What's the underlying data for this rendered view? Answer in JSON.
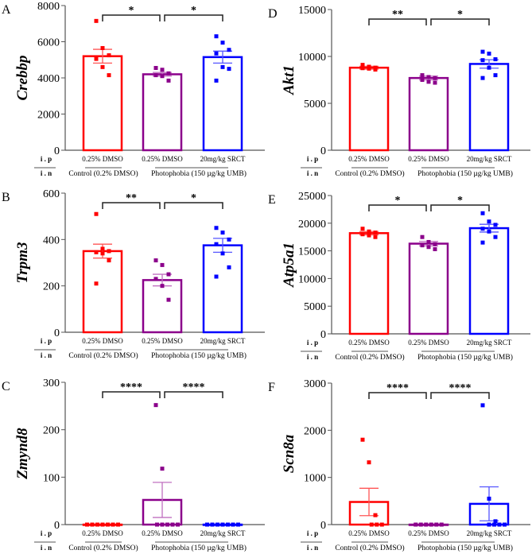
{
  "chart_data": [
    {
      "panel": "A",
      "type": "bar",
      "ylabel": "Crebbp",
      "ylim": [
        0,
        8000
      ],
      "yticks": [
        0,
        2000,
        4000,
        6000,
        8000
      ],
      "groups": [
        {
          "ip": "0.25% DMSO",
          "mean": 5200,
          "sem": 380,
          "points": [
            7150,
            5650,
            5250,
            5050,
            4600,
            4150
          ]
        },
        {
          "ip": "0.25% DMSO",
          "mean": 4200,
          "sem": 100,
          "points": [
            4550,
            4450,
            4250,
            4150,
            4100,
            3850
          ]
        },
        {
          "ip": "20mg/kg SRCT",
          "mean": 5150,
          "sem": 330,
          "points": [
            6300,
            5950,
            5550,
            5350,
            4600,
            4500,
            3850
          ]
        }
      ],
      "sig": [
        "*",
        "*"
      ]
    },
    {
      "panel": "B",
      "type": "bar",
      "ylabel": "Trpm3",
      "ylim": [
        0,
        600
      ],
      "yticks": [
        0,
        200,
        400,
        600
      ],
      "groups": [
        {
          "ip": "0.25% DMSO",
          "mean": 350,
          "sem": 30,
          "points": [
            510,
            360,
            350,
            345,
            340,
            310,
            210
          ]
        },
        {
          "ip": "0.25% DMSO",
          "mean": 225,
          "sem": 25,
          "points": [
            310,
            290,
            250,
            230,
            200,
            140
          ]
        },
        {
          "ip": "20mg/kg SRCT",
          "mean": 375,
          "sem": 30,
          "points": [
            450,
            430,
            400,
            380,
            340,
            280,
            240
          ]
        }
      ],
      "sig": [
        "**",
        "*"
      ]
    },
    {
      "panel": "C",
      "type": "bar",
      "ylabel": "Zmynd8",
      "ylim": [
        0,
        300
      ],
      "yticks": [
        0,
        100,
        200,
        300
      ],
      "groups": [
        {
          "ip": "0.25% DMSO",
          "mean": 0,
          "sem": 0,
          "points": [
            0,
            0,
            0,
            0,
            0,
            0,
            0
          ]
        },
        {
          "ip": "0.25% DMSO",
          "mean": 52,
          "sem": 37,
          "points": [
            252,
            118,
            0,
            0,
            0,
            0,
            0
          ]
        },
        {
          "ip": "20mg/kg SRCT",
          "mean": 0,
          "sem": 0,
          "points": [
            0,
            0,
            0,
            0,
            0,
            0,
            0
          ]
        }
      ],
      "sig": [
        "****",
        "****"
      ]
    },
    {
      "panel": "D",
      "type": "bar",
      "ylabel": "Akt1",
      "ylim": [
        0,
        15000
      ],
      "yticks": [
        0,
        5000,
        10000,
        15000
      ],
      "groups": [
        {
          "ip": "0.25% DMSO",
          "mean": 8800,
          "sem": 150,
          "points": [
            9100,
            8900,
            8800,
            8750,
            8700,
            8600
          ]
        },
        {
          "ip": "0.25% DMSO",
          "mean": 7700,
          "sem": 200,
          "points": [
            8000,
            7800,
            7700,
            7500,
            7300,
            7200
          ]
        },
        {
          "ip": "20mg/kg SRCT",
          "mean": 9200,
          "sem": 450,
          "points": [
            10500,
            10300,
            9700,
            9600,
            8800,
            8000,
            7700
          ]
        }
      ],
      "sig": [
        "**",
        "*"
      ]
    },
    {
      "panel": "E",
      "type": "bar",
      "ylabel": "Atp5a1",
      "ylim": [
        0,
        25000
      ],
      "yticks": [
        0,
        5000,
        10000,
        15000,
        20000,
        25000
      ],
      "groups": [
        {
          "ip": "0.25% DMSO",
          "mean": 18200,
          "sem": 300,
          "points": [
            19000,
            18500,
            18300,
            18000,
            17800,
            17500
          ]
        },
        {
          "ip": "0.25% DMSO",
          "mean": 16300,
          "sem": 400,
          "points": [
            17500,
            16600,
            16200,
            16000,
            15700,
            15300
          ]
        },
        {
          "ip": "20mg/kg SRCT",
          "mean": 19100,
          "sem": 700,
          "points": [
            21800,
            20300,
            19700,
            19000,
            18500,
            17500,
            16500
          ]
        }
      ],
      "sig": [
        "*",
        "*"
      ]
    },
    {
      "panel": "F",
      "type": "bar",
      "ylabel": "Scn8a",
      "ylim": [
        0,
        3000
      ],
      "yticks": [
        0,
        1000,
        2000,
        3000
      ],
      "groups": [
        {
          "ip": "0.25% DMSO",
          "mean": 480,
          "sem": 290,
          "points": [
            1800,
            1320,
            200,
            0,
            0,
            0
          ]
        },
        {
          "ip": "0.25% DMSO",
          "mean": 0,
          "sem": 0,
          "points": [
            0,
            0,
            0,
            0,
            0,
            0
          ]
        },
        {
          "ip": "20mg/kg SRCT",
          "mean": 440,
          "sem": 360,
          "points": [
            2530,
            550,
            70,
            0,
            0,
            0,
            0
          ]
        }
      ],
      "sig": [
        "****",
        "****"
      ]
    }
  ],
  "row_labels": {
    "ip": "i . p",
    "in": "i . n"
  },
  "group_labels": {
    "control": "Control (0.2% DMSO)",
    "photophobia": "Photophobia (150 µg/kg UMB)"
  },
  "colors": {
    "bars": [
      "#ff0000",
      "#8b008b",
      "#0000ff"
    ],
    "errors": [
      "#ff5555",
      "#c070c0",
      "#5555ff"
    ]
  }
}
